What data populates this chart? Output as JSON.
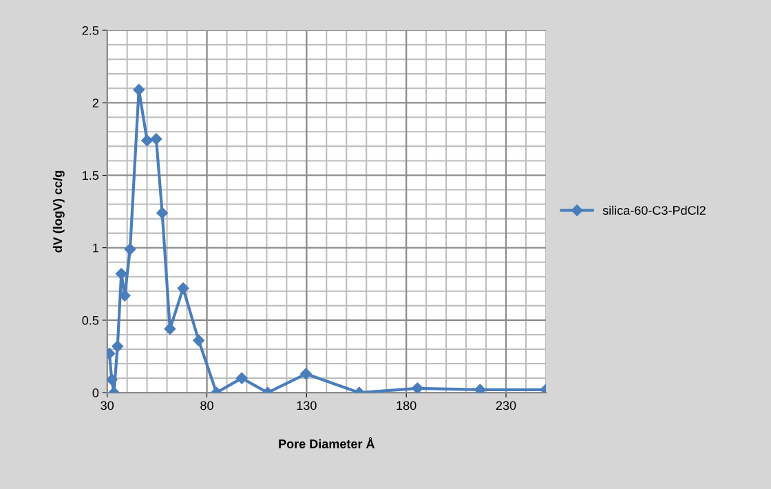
{
  "chart_data": {
    "type": "line",
    "xlabel": "Pore Diameter Å",
    "ylabel": "dV (logV) cc/g",
    "xlim": [
      30,
      250
    ],
    "xticks": [
      30,
      80,
      130,
      180,
      230
    ],
    "ylim": [
      0,
      2.5
    ],
    "yticks": [
      0,
      0.5,
      1,
      1.5,
      2,
      2.5
    ],
    "grid": true,
    "legend": "right",
    "marker": "diamond",
    "line_style": "solid",
    "series": [
      {
        "name": "silica-60-C3-PdCl2",
        "color": "#4a7ebb",
        "x": [
          31.1,
          32.3,
          33.4,
          35.2,
          37.1,
          38.8,
          41.5,
          45.9,
          50.0,
          54.6,
          57.6,
          61.5,
          68.1,
          75.9,
          84.8,
          97.5,
          110.5,
          129.7,
          156.4,
          185.6,
          217,
          250
        ],
        "values": [
          0.27,
          0.09,
          0,
          0.32,
          0.82,
          0.67,
          0.99,
          2.09,
          1.74,
          1.75,
          1.24,
          0.44,
          0.72,
          0.36,
          0,
          0.1,
          0,
          0.13,
          0,
          0.03,
          0.02,
          0.02
        ]
      }
    ]
  }
}
